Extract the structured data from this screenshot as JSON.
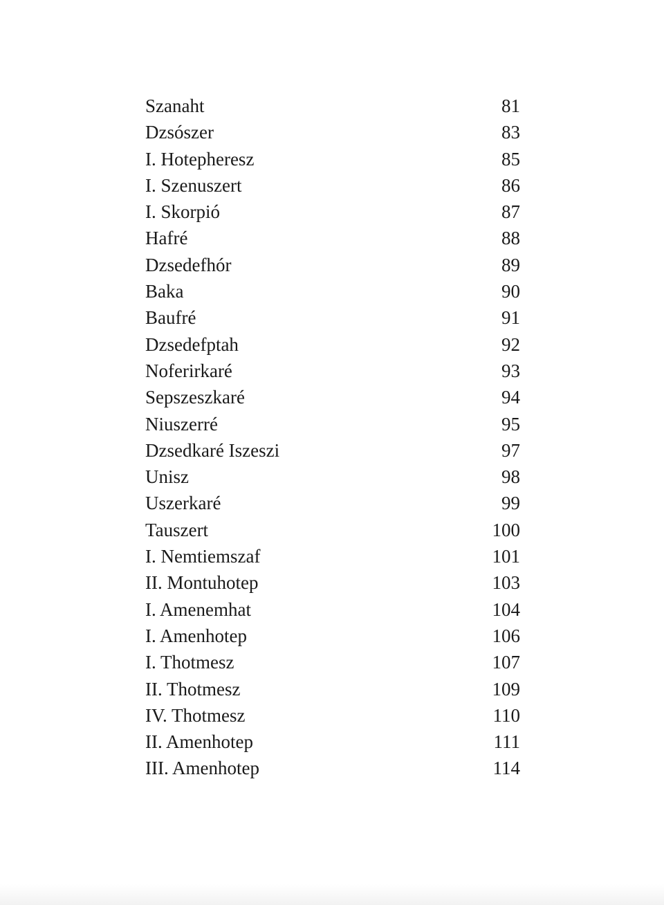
{
  "toc": {
    "entries": [
      {
        "title": "Szanaht",
        "page": "81"
      },
      {
        "title": "Dzsószer",
        "page": "83"
      },
      {
        "title": "I. Hotepheresz",
        "page": "85"
      },
      {
        "title": "I. Szenuszert",
        "page": "86"
      },
      {
        "title": "I. Skorpió",
        "page": "87"
      },
      {
        "title": "Hafré",
        "page": "88"
      },
      {
        "title": "Dzsedefhór",
        "page": "89"
      },
      {
        "title": "Baka",
        "page": "90"
      },
      {
        "title": "Baufré",
        "page": "91"
      },
      {
        "title": "Dzsedefptah",
        "page": "92"
      },
      {
        "title": "Noferirkaré",
        "page": "93"
      },
      {
        "title": "Sepszeszkaré",
        "page": "94"
      },
      {
        "title": "Niuszerré",
        "page": "95"
      },
      {
        "title": "Dzsedkaré Iszeszi",
        "page": "97"
      },
      {
        "title": "Unisz",
        "page": "98"
      },
      {
        "title": "Uszerkaré",
        "page": "99"
      },
      {
        "title": "Tauszert",
        "page": "100"
      },
      {
        "title": "I. Nemtiemszaf",
        "page": "101"
      },
      {
        "title": "II. Montuhotep",
        "page": "103"
      },
      {
        "title": "I. Amenemhat",
        "page": "104"
      },
      {
        "title": "I. Amenhotep",
        "page": "106"
      },
      {
        "title": "I. Thotmesz",
        "page": "107"
      },
      {
        "title": "II. Thotmesz",
        "page": "109"
      },
      {
        "title": "IV. Thotmesz",
        "page": "110"
      },
      {
        "title": "II. Amenhotep",
        "page": "111"
      },
      {
        "title": "III. Amenhotep",
        "page": "114"
      }
    ]
  }
}
